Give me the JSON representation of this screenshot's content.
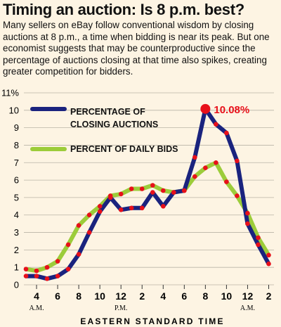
{
  "headline": "Timing an auction: Is 8 p.m. best?",
  "intro_text": "Many sellers on eBay follow conventional wisdom by closing auctions at 8 p.m., a time when bidding is near its peak. But one economist suggests that may be counterproductive since the percentage of auctions closing at that time also spikes, creating greater competition for bidders.",
  "colors": {
    "background": "#fdf4e3",
    "closing_line": "#1a237e",
    "bids_line": "#9ccc3a",
    "markers": "#e8101a",
    "peak_label": "#e8101a"
  },
  "chart_data": {
    "type": "line",
    "xlabel": "EASTERN STANDARD TIME",
    "ylabel": "",
    "ylim": [
      0,
      11
    ],
    "yticks": [
      0,
      1,
      2,
      3,
      4,
      5,
      6,
      7,
      8,
      9,
      10,
      11
    ],
    "ytick_labels": [
      "0",
      "1",
      "2",
      "3",
      "4",
      "5",
      "6",
      "7",
      "8",
      "9",
      "10",
      "11%"
    ],
    "x": [
      3,
      4,
      5,
      6,
      7,
      8,
      9,
      10,
      11,
      12,
      13,
      14,
      15,
      16,
      17,
      18,
      19,
      20,
      21,
      22,
      23,
      24,
      25,
      26
    ],
    "xticks": [
      {
        "x": 4,
        "label": "4",
        "sub": "A.M."
      },
      {
        "x": 6,
        "label": "6",
        "sub": ""
      },
      {
        "x": 8,
        "label": "8",
        "sub": ""
      },
      {
        "x": 10,
        "label": "10",
        "sub": ""
      },
      {
        "x": 12,
        "label": "12",
        "sub": "P.M."
      },
      {
        "x": 14,
        "label": "2",
        "sub": ""
      },
      {
        "x": 16,
        "label": "4",
        "sub": ""
      },
      {
        "x": 18,
        "label": "6",
        "sub": ""
      },
      {
        "x": 20,
        "label": "8",
        "sub": ""
      },
      {
        "x": 22,
        "label": "10",
        "sub": ""
      },
      {
        "x": 24,
        "label": "12",
        "sub": "A.M."
      },
      {
        "x": 26,
        "label": "2",
        "sub": ""
      }
    ],
    "series": [
      {
        "name": "PERCENTAGE OF CLOSING AUCTIONS",
        "values": [
          0.5,
          0.5,
          0.35,
          0.5,
          0.9,
          1.75,
          3.0,
          4.2,
          5.0,
          4.3,
          4.4,
          4.4,
          5.3,
          4.5,
          5.3,
          5.4,
          7.3,
          10.08,
          9.2,
          8.7,
          7.1,
          3.5,
          2.3,
          1.2
        ]
      },
      {
        "name": "PERCENT OF DAILY BIDS",
        "values": [
          0.9,
          0.8,
          1.0,
          1.35,
          2.3,
          3.4,
          4.0,
          4.5,
          5.1,
          5.2,
          5.5,
          5.5,
          5.7,
          5.4,
          5.3,
          5.4,
          6.2,
          6.7,
          7.0,
          5.9,
          5.1,
          4.1,
          2.7,
          1.7
        ]
      }
    ],
    "annotations": [
      {
        "x": 20,
        "y": 10.08,
        "text": "10.08%"
      }
    ],
    "legend": [
      {
        "text": "PERCENTAGE OF",
        "series": 0
      },
      {
        "text": "CLOSING AUCTIONS",
        "series": 0
      },
      {
        "text": "PERCENT OF DAILY BIDS",
        "series": 1
      }
    ],
    "grid": true
  }
}
